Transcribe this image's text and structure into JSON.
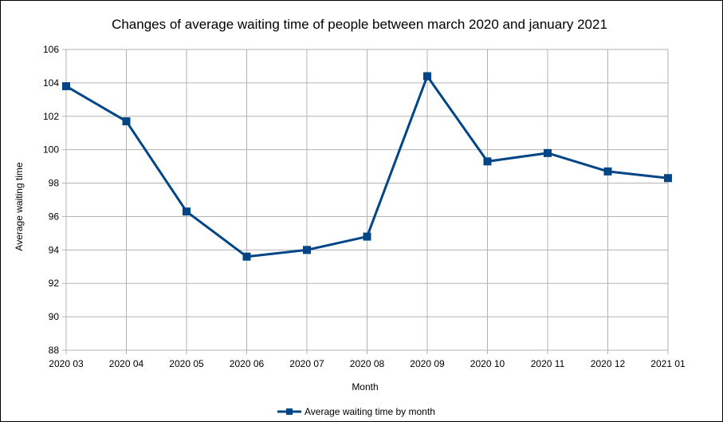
{
  "chart_data": {
    "type": "line",
    "title": "Changes of average waiting time of people between march 2020 and january 2021",
    "xlabel": "Month",
    "ylabel": "Average waiting time",
    "categories": [
      "2020 03",
      "2020 04",
      "2020 05",
      "2020 06",
      "2020 07",
      "2020 08",
      "2020 09",
      "2020 10",
      "2020 11",
      "2020 12",
      "2021 01"
    ],
    "ylim": [
      88,
      106
    ],
    "yticks": [
      "88",
      "90",
      "92",
      "94",
      "96",
      "98",
      "100",
      "102",
      "104",
      "106"
    ],
    "grid": true,
    "legend_position": "bottom",
    "series": [
      {
        "name": "Average waiting time by month",
        "color": "#004586",
        "marker": "square",
        "values": [
          103.8,
          101.7,
          96.3,
          93.6,
          94.0,
          94.8,
          104.4,
          99.3,
          99.8,
          98.7,
          98.3
        ]
      }
    ]
  }
}
